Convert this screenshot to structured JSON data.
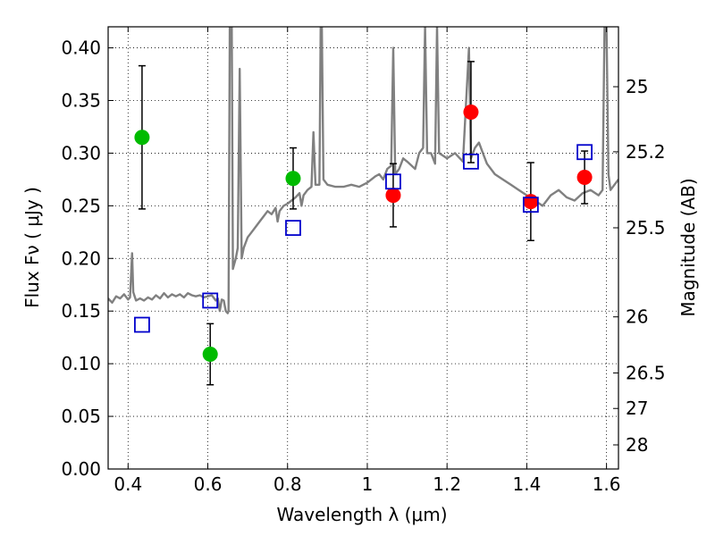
{
  "chart_data": {
    "type": "scatter",
    "xlabel": "Wavelength  λ (μm)",
    "ylabel": "Flux  Fν  ( μJy )",
    "y2label": "Magnitude (AB)",
    "xlim": [
      0.35,
      1.63
    ],
    "ylim": [
      0.0,
      0.42
    ],
    "grid": true,
    "x_ticks": [
      {
        "value": 0.4,
        "label": "0.4"
      },
      {
        "value": 0.6,
        "label": "0.6"
      },
      {
        "value": 0.8,
        "label": "0.8"
      },
      {
        "value": 1.0,
        "label": "1"
      },
      {
        "value": 1.2,
        "label": "1.2"
      },
      {
        "value": 1.4,
        "label": "1.4"
      },
      {
        "value": 1.6,
        "label": "1.6"
      }
    ],
    "y_ticks": [
      {
        "value": 0.0,
        "label": "0.00"
      },
      {
        "value": 0.05,
        "label": "0.05"
      },
      {
        "value": 0.1,
        "label": "0.10"
      },
      {
        "value": 0.15,
        "label": "0.15"
      },
      {
        "value": 0.2,
        "label": "0.20"
      },
      {
        "value": 0.25,
        "label": "0.25"
      },
      {
        "value": 0.3,
        "label": "0.30"
      },
      {
        "value": 0.35,
        "label": "0.35"
      },
      {
        "value": 0.4,
        "label": "0.40"
      }
    ],
    "y2_ticks": [
      {
        "flux": 0.3631,
        "label": "25"
      },
      {
        "flux": 0.3013,
        "label": "25.2"
      },
      {
        "flux": 0.2291,
        "label": "25.5"
      },
      {
        "flux": 0.1445,
        "label": "26"
      },
      {
        "flux": 0.0912,
        "label": "26.5"
      },
      {
        "flux": 0.0575,
        "label": "27"
      },
      {
        "flux": 0.0229,
        "label": "28"
      }
    ],
    "series": [
      {
        "color": "#808080",
        "style": "line",
        "points": [
          [
            0.35,
            0.162
          ],
          [
            0.36,
            0.158
          ],
          [
            0.37,
            0.164
          ],
          [
            0.38,
            0.162
          ],
          [
            0.39,
            0.166
          ],
          [
            0.4,
            0.161
          ],
          [
            0.405,
            0.163
          ],
          [
            0.41,
            0.205
          ],
          [
            0.413,
            0.168
          ],
          [
            0.42,
            0.16
          ],
          [
            0.43,
            0.162
          ],
          [
            0.44,
            0.16
          ],
          [
            0.45,
            0.163
          ],
          [
            0.46,
            0.161
          ],
          [
            0.47,
            0.165
          ],
          [
            0.48,
            0.162
          ],
          [
            0.49,
            0.167
          ],
          [
            0.5,
            0.163
          ],
          [
            0.51,
            0.166
          ],
          [
            0.52,
            0.164
          ],
          [
            0.53,
            0.166
          ],
          [
            0.54,
            0.163
          ],
          [
            0.55,
            0.167
          ],
          [
            0.56,
            0.165
          ],
          [
            0.57,
            0.164
          ],
          [
            0.58,
            0.165
          ],
          [
            0.59,
            0.163
          ],
          [
            0.6,
            0.164
          ],
          [
            0.61,
            0.165
          ],
          [
            0.62,
            0.16
          ],
          [
            0.625,
            0.162
          ],
          [
            0.63,
            0.15
          ],
          [
            0.635,
            0.161
          ],
          [
            0.64,
            0.16
          ],
          [
            0.645,
            0.15
          ],
          [
            0.65,
            0.148
          ],
          [
            0.652,
            0.15
          ],
          [
            0.655,
            0.42
          ],
          [
            0.66,
            0.42
          ],
          [
            0.663,
            0.19
          ],
          [
            0.67,
            0.2
          ],
          [
            0.675,
            0.21
          ],
          [
            0.68,
            0.38
          ],
          [
            0.685,
            0.2
          ],
          [
            0.69,
            0.21
          ],
          [
            0.7,
            0.22
          ],
          [
            0.71,
            0.225
          ],
          [
            0.72,
            0.23
          ],
          [
            0.73,
            0.235
          ],
          [
            0.74,
            0.24
          ],
          [
            0.75,
            0.245
          ],
          [
            0.76,
            0.242
          ],
          [
            0.77,
            0.248
          ],
          [
            0.775,
            0.235
          ],
          [
            0.78,
            0.245
          ],
          [
            0.79,
            0.25
          ],
          [
            0.8,
            0.252
          ],
          [
            0.81,
            0.255
          ],
          [
            0.82,
            0.258
          ],
          [
            0.83,
            0.262
          ],
          [
            0.835,
            0.25
          ],
          [
            0.84,
            0.26
          ],
          [
            0.85,
            0.265
          ],
          [
            0.86,
            0.268
          ],
          [
            0.865,
            0.32
          ],
          [
            0.87,
            0.27
          ],
          [
            0.88,
            0.27
          ],
          [
            0.883,
            0.42
          ],
          [
            0.886,
            0.42
          ],
          [
            0.89,
            0.275
          ],
          [
            0.9,
            0.27
          ],
          [
            0.92,
            0.268
          ],
          [
            0.94,
            0.268
          ],
          [
            0.96,
            0.27
          ],
          [
            0.98,
            0.268
          ],
          [
            1.0,
            0.272
          ],
          [
            1.02,
            0.278
          ],
          [
            1.03,
            0.28
          ],
          [
            1.04,
            0.275
          ],
          [
            1.05,
            0.285
          ],
          [
            1.06,
            0.288
          ],
          [
            1.065,
            0.4
          ],
          [
            1.07,
            0.28
          ],
          [
            1.08,
            0.285
          ],
          [
            1.09,
            0.295
          ],
          [
            1.1,
            0.292
          ],
          [
            1.12,
            0.285
          ],
          [
            1.13,
            0.3
          ],
          [
            1.14,
            0.305
          ],
          [
            1.145,
            0.42
          ],
          [
            1.15,
            0.3
          ],
          [
            1.16,
            0.3
          ],
          [
            1.17,
            0.29
          ],
          [
            1.175,
            0.42
          ],
          [
            1.18,
            0.3
          ],
          [
            1.2,
            0.295
          ],
          [
            1.22,
            0.3
          ],
          [
            1.24,
            0.292
          ],
          [
            1.255,
            0.4
          ],
          [
            1.26,
            0.295
          ],
          [
            1.27,
            0.305
          ],
          [
            1.28,
            0.31
          ],
          [
            1.29,
            0.3
          ],
          [
            1.3,
            0.29
          ],
          [
            1.32,
            0.28
          ],
          [
            1.34,
            0.275
          ],
          [
            1.36,
            0.27
          ],
          [
            1.38,
            0.265
          ],
          [
            1.4,
            0.26
          ],
          [
            1.42,
            0.255
          ],
          [
            1.44,
            0.25
          ],
          [
            1.46,
            0.26
          ],
          [
            1.48,
            0.265
          ],
          [
            1.5,
            0.258
          ],
          [
            1.52,
            0.255
          ],
          [
            1.54,
            0.262
          ],
          [
            1.56,
            0.265
          ],
          [
            1.58,
            0.26
          ],
          [
            1.59,
            0.265
          ],
          [
            1.595,
            0.42
          ],
          [
            1.6,
            0.42
          ],
          [
            1.605,
            0.28
          ],
          [
            1.61,
            0.265
          ],
          [
            1.62,
            0.27
          ],
          [
            1.63,
            0.275
          ]
        ]
      },
      {
        "color": "#00bb00",
        "style": "circle",
        "points": [
          {
            "x": 0.435,
            "y": 0.315,
            "err": 0.068
          },
          {
            "x": 0.606,
            "y": 0.109,
            "err": 0.029
          },
          {
            "x": 0.814,
            "y": 0.276,
            "err": 0.029
          }
        ]
      },
      {
        "color": "#ff0000",
        "style": "circle",
        "points": [
          {
            "x": 1.065,
            "y": 0.26,
            "err": 0.03
          },
          {
            "x": 1.26,
            "y": 0.339,
            "err": 0.048
          },
          {
            "x": 1.41,
            "y": 0.254,
            "err": 0.037
          },
          {
            "x": 1.545,
            "y": 0.277,
            "err": 0.025
          }
        ]
      },
      {
        "color": "#0000cc",
        "style": "square",
        "points": [
          {
            "x": 0.435,
            "y": 0.137
          },
          {
            "x": 0.606,
            "y": 0.16
          },
          {
            "x": 0.814,
            "y": 0.229
          },
          {
            "x": 1.065,
            "y": 0.273
          },
          {
            "x": 1.26,
            "y": 0.292
          },
          {
            "x": 1.41,
            "y": 0.251
          },
          {
            "x": 1.545,
            "y": 0.301
          }
        ]
      }
    ]
  }
}
